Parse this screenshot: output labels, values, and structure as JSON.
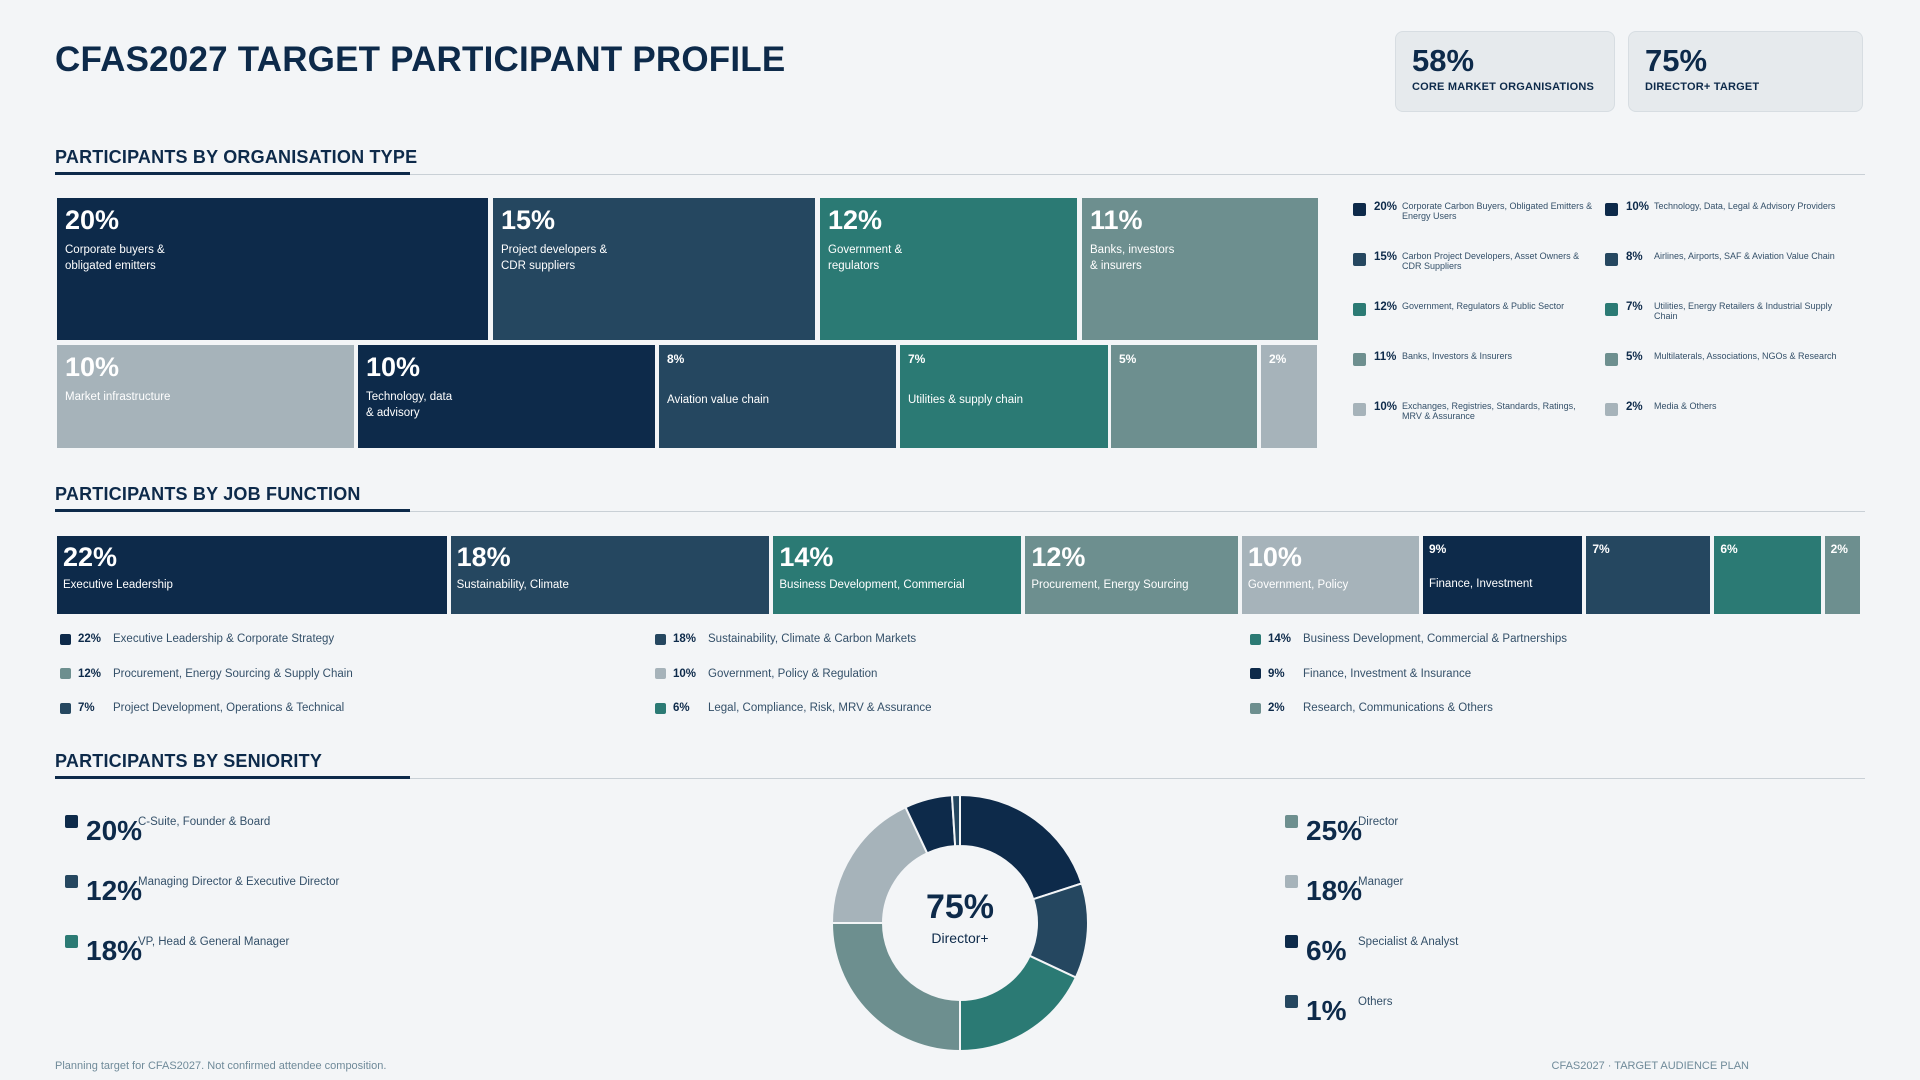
{
  "title": "CFAS2027 TARGET PARTICIPANT PROFILE",
  "kpis": [
    {
      "value": "58%",
      "label": "CORE MARKET ORGANISATIONS"
    },
    {
      "value": "75%",
      "label": "DIRECTOR+ TARGET"
    }
  ],
  "sections": {
    "org": "PARTICIPANTS BY ORGANISATION TYPE",
    "job": "PARTICIPANTS BY JOB FUNCTION",
    "seniority": "PARTICIPANTS BY SENIORITY"
  },
  "colors": {
    "navy": "#0d2a4a",
    "slate": "#254760",
    "teal": "#2b7a74",
    "grey_teal": "#6d8f8f",
    "light_grey": "#a6b3ba"
  },
  "chart_data": [
    {
      "type": "treemap",
      "name": "organisation_type",
      "tiles": [
        {
          "pct": "20%",
          "label": "Corporate buyers &\nobligated emitters",
          "color": "#0d2a4a"
        },
        {
          "pct": "15%",
          "label": "Project developers &\nCDR suppliers",
          "color": "#254760"
        },
        {
          "pct": "12%",
          "label": "Government &\nregulators",
          "color": "#2b7a74"
        },
        {
          "pct": "11%",
          "label": "Banks, investors\n& insurers",
          "color": "#6d8f8f"
        },
        {
          "pct": "10%",
          "label": "Market infrastructure",
          "color": "#a6b3ba"
        },
        {
          "pct": "10%",
          "label": "Technology, data\n& advisory",
          "color": "#0d2a4a"
        },
        {
          "pct": "8%",
          "label": "Aviation value chain",
          "color": "#254760"
        },
        {
          "pct": "7%",
          "label": "Utilities & supply chain",
          "color": "#2b7a74"
        },
        {
          "pct": "5%",
          "label": "",
          "color": "#6d8f8f"
        },
        {
          "pct": "2%",
          "label": "",
          "color": "#a6b3ba"
        }
      ],
      "legend": [
        {
          "pct": "20%",
          "text": "Corporate Carbon Buyers, Obligated Emitters & Energy Users",
          "color": "#0d2a4a"
        },
        {
          "pct": "10%",
          "text": "Technology, Data, Legal & Advisory Providers",
          "color": "#0d2a4a"
        },
        {
          "pct": "15%",
          "text": "Carbon Project Developers, Asset Owners & CDR Suppliers",
          "color": "#254760"
        },
        {
          "pct": "8%",
          "text": "Airlines, Airports, SAF & Aviation Value Chain",
          "color": "#254760"
        },
        {
          "pct": "12%",
          "text": "Government, Regulators & Public Sector",
          "color": "#2b7a74"
        },
        {
          "pct": "7%",
          "text": "Utilities, Energy Retailers & Industrial Supply Chain",
          "color": "#2b7a74"
        },
        {
          "pct": "11%",
          "text": "Banks, Investors & Insurers",
          "color": "#6d8f8f"
        },
        {
          "pct": "5%",
          "text": "Multilaterals, Associations, NGOs & Research",
          "color": "#6d8f8f"
        },
        {
          "pct": "10%",
          "text": "Exchanges, Registries, Standards, Ratings, MRV & Assurance",
          "color": "#a6b3ba"
        },
        {
          "pct": "2%",
          "text": "Media & Others",
          "color": "#a6b3ba"
        }
      ]
    },
    {
      "type": "bar",
      "name": "job_function",
      "bars": [
        {
          "pct": "22%",
          "value": 22,
          "label": "Executive Leadership",
          "color": "#0d2a4a"
        },
        {
          "pct": "18%",
          "value": 18,
          "label": "Sustainability, Climate",
          "color": "#254760"
        },
        {
          "pct": "14%",
          "value": 14,
          "label": "Business Development, Commercial",
          "color": "#2b7a74"
        },
        {
          "pct": "12%",
          "value": 12,
          "label": "Procurement, Energy Sourcing",
          "color": "#6d8f8f"
        },
        {
          "pct": "10%",
          "value": 10,
          "label": "Government, Policy",
          "color": "#a6b3ba"
        },
        {
          "pct": "9%",
          "value": 9,
          "label": "Finance, Investment",
          "color": "#0d2a4a"
        },
        {
          "pct": "7%",
          "value": 7,
          "label": "",
          "color": "#254760"
        },
        {
          "pct": "6%",
          "value": 6,
          "label": "",
          "color": "#2b7a74"
        },
        {
          "pct": "2%",
          "value": 2,
          "label": "",
          "color": "#6d8f8f"
        }
      ],
      "legend": [
        {
          "pct": "22%",
          "text": "Executive Leadership & Corporate Strategy",
          "color": "#0d2a4a"
        },
        {
          "pct": "18%",
          "text": "Sustainability, Climate & Carbon Markets",
          "color": "#254760"
        },
        {
          "pct": "14%",
          "text": "Business Development, Commercial & Partnerships",
          "color": "#2b7a74"
        },
        {
          "pct": "12%",
          "text": "Procurement, Energy Sourcing & Supply Chain",
          "color": "#6d8f8f"
        },
        {
          "pct": "10%",
          "text": "Government, Policy & Regulation",
          "color": "#a6b3ba"
        },
        {
          "pct": "9%",
          "text": "Finance, Investment & Insurance",
          "color": "#0d2a4a"
        },
        {
          "pct": "7%",
          "text": "Project Development, Operations & Technical",
          "color": "#254760"
        },
        {
          "pct": "6%",
          "text": "Legal, Compliance, Risk, MRV & Assurance",
          "color": "#2b7a74"
        },
        {
          "pct": "2%",
          "text": "Research, Communications & Others",
          "color": "#6d8f8f"
        }
      ]
    },
    {
      "type": "pie",
      "name": "seniority",
      "center_value": "75%",
      "center_label": "Director+",
      "slices": [
        {
          "pct": "20%",
          "value": 20,
          "label": "C-Suite, Founder & Board",
          "color": "#0d2a4a"
        },
        {
          "pct": "12%",
          "value": 12,
          "label": "Managing Director & Executive Director",
          "color": "#254760"
        },
        {
          "pct": "18%",
          "value": 18,
          "label": "VP, Head & General Manager",
          "color": "#2b7a74"
        },
        {
          "pct": "25%",
          "value": 25,
          "label": "Director",
          "color": "#6d8f8f"
        },
        {
          "pct": "18%",
          "value": 18,
          "label": "Manager",
          "color": "#a6b3ba"
        },
        {
          "pct": "6%",
          "value": 6,
          "label": "Specialist & Analyst",
          "color": "#0d2a4a"
        },
        {
          "pct": "1%",
          "value": 1,
          "label": "Others",
          "color": "#254760"
        }
      ]
    }
  ],
  "footer": {
    "left": "Planning target for CFAS2027. Not confirmed attendee composition.",
    "right": "CFAS2027 · TARGET AUDIENCE PLAN"
  }
}
